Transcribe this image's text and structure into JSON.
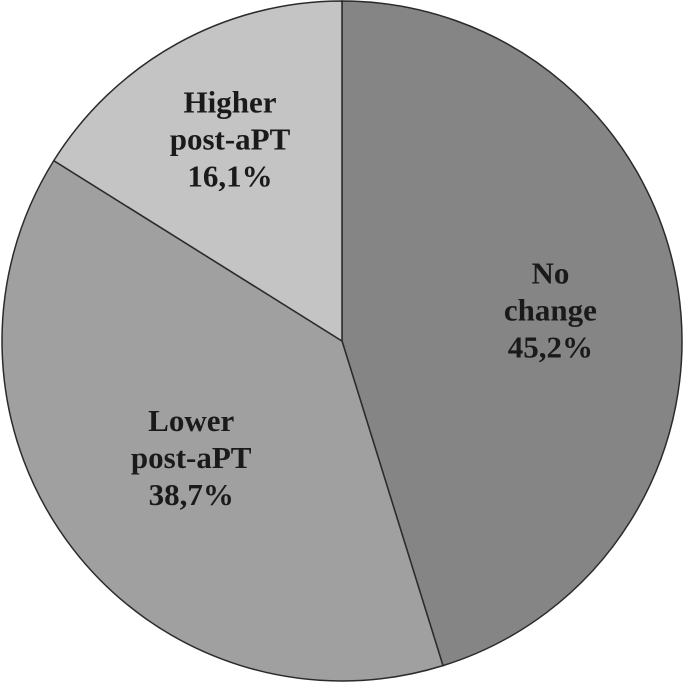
{
  "chart_data": {
    "type": "pie",
    "title": "",
    "slices": [
      {
        "label_lines": [
          "No",
          "change"
        ],
        "value": 45.2,
        "value_text": "45,2%",
        "color": "#858585"
      },
      {
        "label_lines": [
          "Lower",
          "post-aPT"
        ],
        "value": 38.7,
        "value_text": "38,7%",
        "color": "#a0a0a0"
      },
      {
        "label_lines": [
          "Higher",
          "post-aPT"
        ],
        "value": 16.1,
        "value_text": "16,1%",
        "color": "#c4c4c4"
      }
    ],
    "start_angle": "12 o'clock",
    "direction": "clockwise",
    "legend": "none (labels inside slices)",
    "border_color": "#2b2b2b"
  }
}
